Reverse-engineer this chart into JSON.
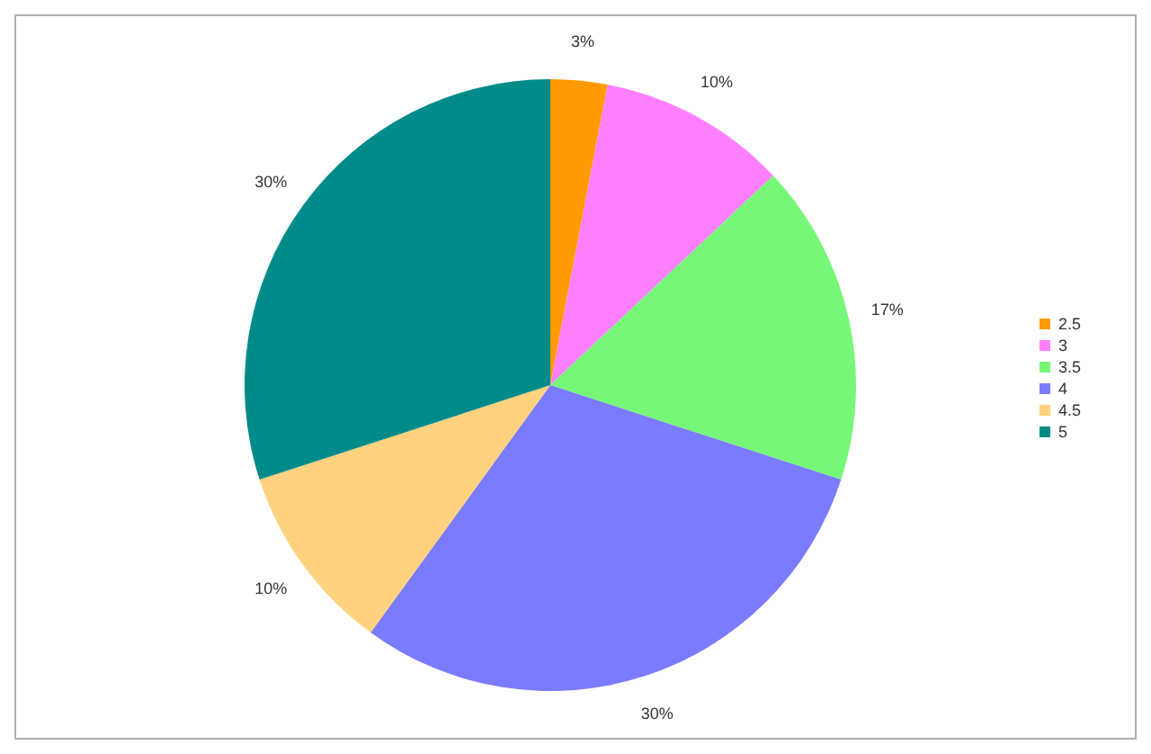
{
  "chart_data": {
    "type": "pie",
    "categories": [
      "2.5",
      "3",
      "3.5",
      "4",
      "4.5",
      "5"
    ],
    "values": [
      3,
      10,
      17,
      30,
      10,
      30
    ],
    "colors": [
      "#ff9a00",
      "#ff80ff",
      "#77f777",
      "#7b7bff",
      "#ffd27f",
      "#008b8b"
    ],
    "value_labels": [
      "3%",
      "10%",
      "17%",
      "30%",
      "10%",
      "30%"
    ],
    "legend": "right"
  }
}
